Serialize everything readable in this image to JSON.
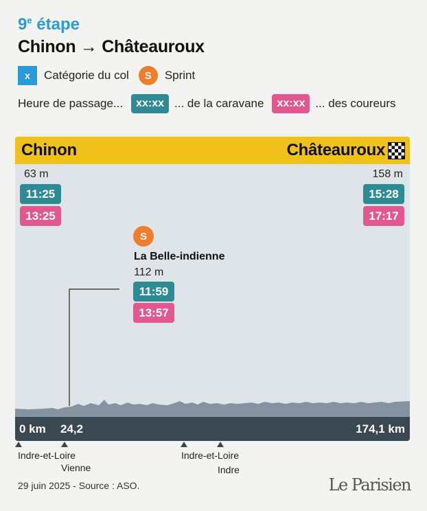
{
  "header": {
    "stage_number": "9",
    "stage_suffix": "e",
    "stage_word": "étape",
    "route": "Chinon → Châteauroux"
  },
  "legend": {
    "col_box": "x",
    "col_label": "Catégorie du col",
    "sprint_icon": "S",
    "sprint_label": "Sprint",
    "time_intro": "Heure de passage...",
    "caravane_chip": "xx:xx",
    "caravane_label": "... de la caravane",
    "coureurs_chip": "xx:xx",
    "coureurs_label": "... des coureurs"
  },
  "profile": {
    "start_city": "Chinon",
    "end_city": "Châteauroux",
    "finish_icon": "checkered-flag-icon",
    "start": {
      "altitude": "63 m",
      "caravane_time": "11:25",
      "coureurs_time": "13:25"
    },
    "end": {
      "altitude": "158 m",
      "caravane_time": "15:28",
      "coureurs_time": "17:17"
    },
    "sprint": {
      "icon": "S",
      "name": "La Belle-indienne",
      "altitude": "112 m",
      "caravane_time": "11:59",
      "coureurs_time": "13:57"
    },
    "km_start": "0 km",
    "km_sprint": "24,2",
    "km_end": "174,1 km",
    "departments": [
      "Indre-et-Loire",
      "Vienne",
      "Indre-et-Loire",
      "Indre"
    ]
  },
  "colors": {
    "stage_blue": "#2a9bd8",
    "sprint_orange": "#ef7d2a",
    "caravane_teal": "#2f8b93",
    "coureurs_pink": "#e0588f",
    "header_yellow": "#f0c01b",
    "km_bar": "#3a4851",
    "terrain": "#8593a0"
  },
  "footer": {
    "source": "29 juin 2025 - Source : ASO.",
    "logo": "Le Parisien"
  }
}
